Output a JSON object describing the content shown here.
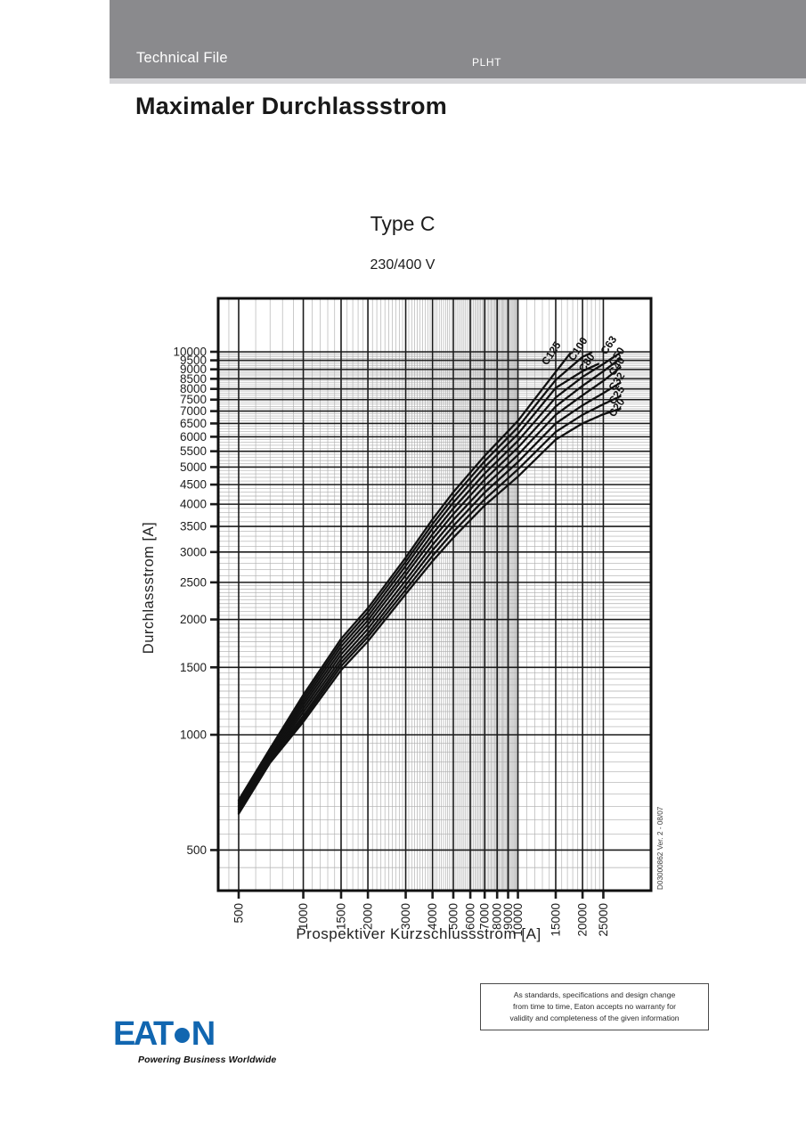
{
  "header": {
    "left_label": "Technical File",
    "right_label": "PLHT",
    "bg_color": "#8a8a8d"
  },
  "title": "Maximaler Durchlassstrom",
  "chart_header": {
    "title": "Type C",
    "subtitle": "230/400 V"
  },
  "side_note": "D03000862  Ver. 2 - 08/07",
  "disclaimer": {
    "lines": [
      "As standards, specifications and design change",
      "from time to time, Eaton accepts no warranty for",
      "validity and completeness of the given information"
    ]
  },
  "logo": {
    "left": "EAT",
    "right": "N",
    "tagline": "Powering Business Worldwide",
    "color": "#1166b0"
  },
  "chart_data": {
    "type": "line",
    "title": "Type C",
    "subtitle": "230/400 V",
    "xlabel": "Prospektiver Kurzschlussstrom [A]",
    "ylabel": "Durchlassstrom  [A]",
    "x_scale": "log",
    "y_scale": "log",
    "xlim": [
      400,
      42000
    ],
    "ylim": [
      400,
      13800
    ],
    "grid": "log graph paper, minor and major lines",
    "legend_position": "labels at curve ends",
    "x_ticks": [
      500,
      1000,
      1500,
      2000,
      3000,
      4000,
      5000,
      6000,
      7000,
      8000,
      9000,
      10000,
      15000,
      20000,
      25000
    ],
    "y_ticks": [
      500,
      1000,
      1500,
      2000,
      2500,
      3000,
      3500,
      4000,
      4500,
      5000,
      5500,
      6000,
      6500,
      7000,
      7500,
      8000,
      8500,
      9000,
      9500,
      10000
    ],
    "series": [
      {
        "name": "C125",
        "points": [
          [
            500,
            675
          ],
          [
            700,
            920
          ],
          [
            1000,
            1270
          ],
          [
            1500,
            1780
          ],
          [
            2000,
            2140
          ],
          [
            3000,
            2900
          ],
          [
            4000,
            3650
          ],
          [
            5000,
            4300
          ],
          [
            7000,
            5350
          ],
          [
            10000,
            6600
          ],
          [
            15000,
            8870
          ],
          [
            17500,
            9900
          ]
        ]
      },
      {
        "name": "C100",
        "points": [
          [
            500,
            668
          ],
          [
            700,
            910
          ],
          [
            1000,
            1245
          ],
          [
            1500,
            1740
          ],
          [
            2000,
            2090
          ],
          [
            3000,
            2830
          ],
          [
            4000,
            3550
          ],
          [
            5000,
            4170
          ],
          [
            7000,
            5180
          ],
          [
            10000,
            6350
          ],
          [
            15000,
            8450
          ],
          [
            20000,
            9700
          ],
          [
            22000,
            9950
          ]
        ]
      },
      {
        "name": "C80",
        "points": [
          [
            500,
            661
          ],
          [
            700,
            900
          ],
          [
            1000,
            1220
          ],
          [
            1500,
            1700
          ],
          [
            2000,
            2040
          ],
          [
            3000,
            2760
          ],
          [
            4000,
            3450
          ],
          [
            5000,
            4040
          ],
          [
            7000,
            5000
          ],
          [
            10000,
            6100
          ],
          [
            15000,
            8050
          ],
          [
            20000,
            8900
          ],
          [
            23700,
            9300
          ]
        ]
      },
      {
        "name": "C63",
        "points": [
          [
            500,
            654
          ],
          [
            700,
            890
          ],
          [
            1000,
            1195
          ],
          [
            1500,
            1660
          ],
          [
            2000,
            1990
          ],
          [
            3000,
            2680
          ],
          [
            4000,
            3340
          ],
          [
            5000,
            3900
          ],
          [
            7000,
            4810
          ],
          [
            10000,
            5850
          ],
          [
            15000,
            7600
          ],
          [
            20000,
            8600
          ],
          [
            25000,
            9300
          ],
          [
            30000,
            9950
          ]
        ]
      },
      {
        "name": "C50",
        "points": [
          [
            500,
            648
          ],
          [
            700,
            880
          ],
          [
            1000,
            1170
          ],
          [
            1500,
            1620
          ],
          [
            2000,
            1940
          ],
          [
            3000,
            2610
          ],
          [
            4000,
            3240
          ],
          [
            5000,
            3770
          ],
          [
            7000,
            4640
          ],
          [
            10000,
            5620
          ],
          [
            15000,
            7200
          ],
          [
            20000,
            8150
          ],
          [
            25000,
            8900
          ],
          [
            30000,
            9600
          ]
        ]
      },
      {
        "name": "C40",
        "points": [
          [
            500,
            641
          ],
          [
            700,
            870
          ],
          [
            1000,
            1145
          ],
          [
            1500,
            1580
          ],
          [
            2000,
            1890
          ],
          [
            3000,
            2530
          ],
          [
            4000,
            3130
          ],
          [
            5000,
            3640
          ],
          [
            7000,
            4460
          ],
          [
            10000,
            5380
          ],
          [
            15000,
            6850
          ],
          [
            20000,
            7700
          ],
          [
            25000,
            8400
          ],
          [
            30000,
            9100
          ]
        ]
      },
      {
        "name": "C32",
        "points": [
          [
            500,
            635
          ],
          [
            700,
            862
          ],
          [
            1000,
            1120
          ],
          [
            1500,
            1545
          ],
          [
            2000,
            1840
          ],
          [
            3000,
            2460
          ],
          [
            4000,
            3030
          ],
          [
            5000,
            3510
          ],
          [
            7000,
            4290
          ],
          [
            10000,
            5150
          ],
          [
            15000,
            6500
          ],
          [
            20000,
            7250
          ],
          [
            25000,
            7800
          ],
          [
            30000,
            8300
          ]
        ]
      },
      {
        "name": "C25",
        "points": [
          [
            500,
            628
          ],
          [
            700,
            853
          ],
          [
            1000,
            1100
          ],
          [
            1500,
            1510
          ],
          [
            2000,
            1800
          ],
          [
            3000,
            2390
          ],
          [
            4000,
            2930
          ],
          [
            5000,
            3390
          ],
          [
            7000,
            4120
          ],
          [
            10000,
            4930
          ],
          [
            15000,
            6180
          ],
          [
            20000,
            6850
          ],
          [
            25000,
            7300
          ],
          [
            30000,
            7650
          ]
        ]
      },
      {
        "name": "C20",
        "points": [
          [
            500,
            622
          ],
          [
            700,
            845
          ],
          [
            1000,
            1080
          ],
          [
            1500,
            1475
          ],
          [
            2000,
            1755
          ],
          [
            3000,
            2330
          ],
          [
            4000,
            2840
          ],
          [
            5000,
            3270
          ],
          [
            7000,
            3970
          ],
          [
            10000,
            4720
          ],
          [
            15000,
            5900
          ],
          [
            20000,
            6500
          ],
          [
            25000,
            6870
          ],
          [
            30000,
            7100
          ]
        ]
      }
    ]
  }
}
